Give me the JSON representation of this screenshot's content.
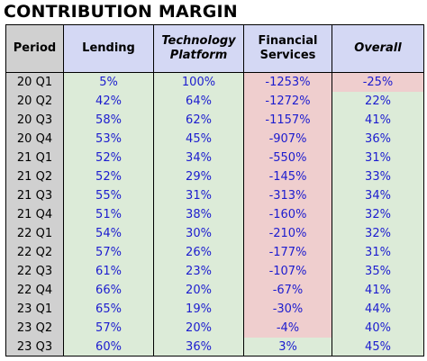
{
  "title": "CONTRIBUTION MARGIN",
  "colors": {
    "header_bg": "#d4d8f4",
    "period_bg": "#d0d0d0",
    "positive_bg": "#dcebd8",
    "negative_bg": "#efcece",
    "value_text": "#1c1ccf"
  },
  "headers": {
    "period": "Period",
    "lending": "Lending",
    "technology_platform": "Technology Platform",
    "financial_services": "Financial Services",
    "overall": "Overall"
  },
  "rows": [
    {
      "period": "20 Q1",
      "lending": "5%",
      "technology_platform": "100%",
      "financial_services": "-1253%",
      "overall": "-25%"
    },
    {
      "period": "20 Q2",
      "lending": "42%",
      "technology_platform": "64%",
      "financial_services": "-1272%",
      "overall": "22%"
    },
    {
      "period": "20 Q3",
      "lending": "58%",
      "technology_platform": "62%",
      "financial_services": "-1157%",
      "overall": "41%"
    },
    {
      "period": "20 Q4",
      "lending": "53%",
      "technology_platform": "45%",
      "financial_services": "-907%",
      "overall": "36%"
    },
    {
      "period": "21 Q1",
      "lending": "52%",
      "technology_platform": "34%",
      "financial_services": "-550%",
      "overall": "31%"
    },
    {
      "period": "21 Q2",
      "lending": "52%",
      "technology_platform": "29%",
      "financial_services": "-145%",
      "overall": "33%"
    },
    {
      "period": "21 Q3",
      "lending": "55%",
      "technology_platform": "31%",
      "financial_services": "-313%",
      "overall": "34%"
    },
    {
      "period": "21 Q4",
      "lending": "51%",
      "technology_platform": "38%",
      "financial_services": "-160%",
      "overall": "32%"
    },
    {
      "period": "22 Q1",
      "lending": "54%",
      "technology_platform": "30%",
      "financial_services": "-210%",
      "overall": "32%"
    },
    {
      "period": "22 Q2",
      "lending": "57%",
      "technology_platform": "26%",
      "financial_services": "-177%",
      "overall": "31%"
    },
    {
      "period": "22 Q3",
      "lending": "61%",
      "technology_platform": "23%",
      "financial_services": "-107%",
      "overall": "35%"
    },
    {
      "period": "22 Q4",
      "lending": "66%",
      "technology_platform": "20%",
      "financial_services": "-67%",
      "overall": "41%"
    },
    {
      "period": "23 Q1",
      "lending": "65%",
      "technology_platform": "19%",
      "financial_services": "-30%",
      "overall": "44%"
    },
    {
      "period": "23 Q2",
      "lending": "57%",
      "technology_platform": "20%",
      "financial_services": "-4%",
      "overall": "40%"
    },
    {
      "period": "23 Q3",
      "lending": "60%",
      "technology_platform": "36%",
      "financial_services": "3%",
      "overall": "45%"
    }
  ]
}
